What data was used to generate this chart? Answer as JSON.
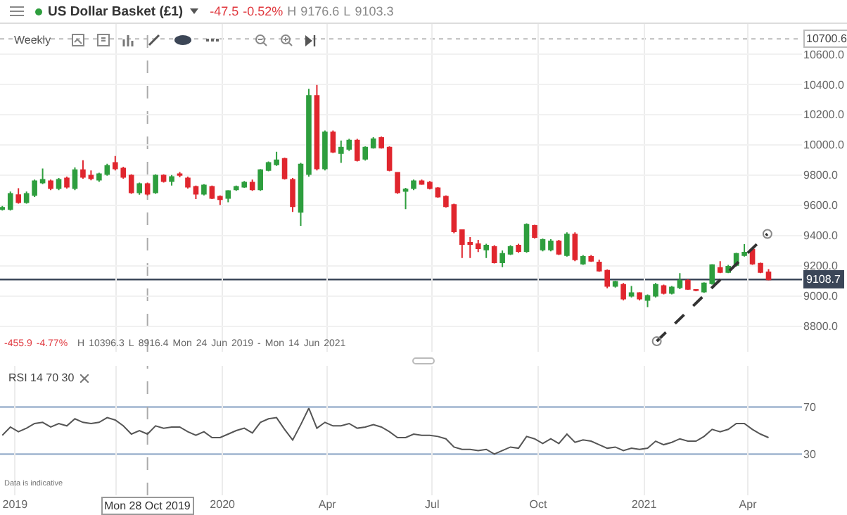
{
  "chart_data": [
    {
      "type": "candlestick",
      "title": "US Dollar Basket (£1)",
      "subtitle": "-47.5 -0.52% H 9176.6 L 9103.3",
      "annotations": [
        "Weekly",
        "-455.9 -4.77% H 10396.3 L 8916.4 Mon 24 Jun 2019 - Mon 14 Jun 2021"
      ],
      "x": [
        "2019-06-24",
        "2019-07-01",
        "2019-07-08",
        "2019-07-15",
        "2019-07-22",
        "2019-07-29",
        "2019-08-05",
        "2019-08-12",
        "2019-08-19",
        "2019-08-26",
        "2019-09-02",
        "2019-09-09",
        "2019-09-16",
        "2019-09-23",
        "2019-09-30",
        "2019-10-07",
        "2019-10-14",
        "2019-10-21",
        "2019-10-28",
        "2019-11-04",
        "2019-11-11",
        "2019-11-18",
        "2019-11-25",
        "2019-12-02",
        "2019-12-09",
        "2019-12-16",
        "2019-12-23",
        "2019-12-30",
        "2020-01-06",
        "2020-01-13",
        "2020-01-20",
        "2020-01-27",
        "2020-02-03",
        "2020-02-10",
        "2020-02-17",
        "2020-02-24",
        "2020-03-02",
        "2020-03-09",
        "2020-03-16",
        "2020-03-23",
        "2020-03-30",
        "2020-04-06",
        "2020-04-13",
        "2020-04-20",
        "2020-04-27",
        "2020-05-04",
        "2020-05-11",
        "2020-05-18",
        "2020-05-25",
        "2020-06-01",
        "2020-06-08",
        "2020-06-15",
        "2020-06-22",
        "2020-06-29",
        "2020-07-06",
        "2020-07-13",
        "2020-07-20",
        "2020-07-27",
        "2020-08-03",
        "2020-08-10",
        "2020-08-17",
        "2020-08-24",
        "2020-08-31",
        "2020-09-07",
        "2020-09-14",
        "2020-09-21",
        "2020-09-28",
        "2020-10-05",
        "2020-10-12",
        "2020-10-19",
        "2020-10-26",
        "2020-11-02",
        "2020-11-09",
        "2020-11-16",
        "2020-11-23",
        "2020-11-30",
        "2020-12-07",
        "2020-12-14",
        "2020-12-21",
        "2020-12-28",
        "2021-01-04",
        "2021-01-11",
        "2021-01-18",
        "2021-01-25",
        "2021-02-01",
        "2021-02-08",
        "2021-02-15",
        "2021-02-22",
        "2021-03-01",
        "2021-03-08",
        "2021-03-15",
        "2021-03-22",
        "2021-03-29",
        "2021-04-05",
        "2021-04-12",
        "2021-04-19"
      ],
      "ohlc": [
        [
          9574,
          9595,
          9565,
          9583
        ],
        [
          9574,
          9690,
          9565,
          9676
        ],
        [
          9667,
          9713,
          9610,
          9620
        ],
        [
          9620,
          9690,
          9610,
          9676
        ],
        [
          9667,
          9770,
          9655,
          9759
        ],
        [
          9750,
          9843,
          9740,
          9769
        ],
        [
          9759,
          9770,
          9700,
          9713
        ],
        [
          9713,
          9780,
          9700,
          9769
        ],
        [
          9778,
          9790,
          9710,
          9722
        ],
        [
          9713,
          9850,
          9700,
          9833
        ],
        [
          9833,
          9898,
          9775,
          9787
        ],
        [
          9796,
          9830,
          9765,
          9778
        ],
        [
          9769,
          9815,
          9755,
          9806
        ],
        [
          9806,
          9875,
          9795,
          9861
        ],
        [
          9880,
          9926,
          9830,
          9843
        ],
        [
          9843,
          9855,
          9775,
          9787
        ],
        [
          9796,
          9805,
          9675,
          9685
        ],
        [
          9685,
          9750,
          9670,
          9741
        ],
        [
          9741,
          9750,
          9665,
          9676
        ],
        [
          9685,
          9805,
          9675,
          9796
        ],
        [
          9796,
          9805,
          9750,
          9759
        ],
        [
          9759,
          9800,
          9730,
          9787
        ],
        [
          9806,
          9820,
          9785,
          9800
        ],
        [
          9778,
          9790,
          9710,
          9722
        ],
        [
          9722,
          9730,
          9640,
          9676
        ],
        [
          9676,
          9740,
          9665,
          9731
        ],
        [
          9722,
          9730,
          9640,
          9648
        ],
        [
          9657,
          9665,
          9602,
          9639
        ],
        [
          9648,
          9700,
          9620,
          9694
        ],
        [
          9704,
          9730,
          9695,
          9722
        ],
        [
          9722,
          9760,
          9715,
          9750
        ],
        [
          9750,
          9770,
          9695,
          9704
        ],
        [
          9704,
          9840,
          9695,
          9833
        ],
        [
          9833,
          9890,
          9825,
          9880
        ],
        [
          9870,
          9954,
          9860,
          9898
        ],
        [
          9907,
          9915,
          9770,
          9778
        ],
        [
          9769,
          9780,
          9556,
          9593
        ],
        [
          9556,
          9880,
          9463,
          9870
        ],
        [
          9806,
          10370,
          9790,
          10324
        ],
        [
          10324,
          10396,
          9830,
          9843
        ],
        [
          9843,
          10095,
          9830,
          10083
        ],
        [
          10083,
          10095,
          9945,
          9954
        ],
        [
          9944,
          10028,
          9880,
          9982
        ],
        [
          9972,
          10040,
          9960,
          10028
        ],
        [
          10028,
          10040,
          9890,
          9898
        ],
        [
          9907,
          9990,
          9895,
          9982
        ],
        [
          9982,
          10050,
          9975,
          10037
        ],
        [
          10046,
          10055,
          9975,
          9982
        ],
        [
          9982,
          9990,
          9825,
          9833
        ],
        [
          9815,
          9820,
          9675,
          9685
        ],
        [
          9694,
          9715,
          9574,
          9704
        ],
        [
          9713,
          9770,
          9700,
          9759
        ],
        [
          9759,
          9770,
          9735,
          9741
        ],
        [
          9750,
          9760,
          9705,
          9713
        ],
        [
          9713,
          9720,
          9650,
          9657
        ],
        [
          9657,
          9665,
          9585,
          9593
        ],
        [
          9602,
          9610,
          9415,
          9426
        ],
        [
          9435,
          9440,
          9250,
          9343
        ],
        [
          9352,
          9389,
          9250,
          9343
        ],
        [
          9343,
          9370,
          9290,
          9315
        ],
        [
          9306,
          9345,
          9250,
          9333
        ],
        [
          9324,
          9335,
          9215,
          9222
        ],
        [
          9222,
          9300,
          9190,
          9278
        ],
        [
          9278,
          9335,
          9270,
          9324
        ],
        [
          9333,
          9345,
          9285,
          9296
        ],
        [
          9296,
          9480,
          9285,
          9472
        ],
        [
          9463,
          9470,
          9380,
          9389
        ],
        [
          9306,
          9380,
          9295,
          9370
        ],
        [
          9306,
          9375,
          9295,
          9361
        ],
        [
          9361,
          9370,
          9270,
          9278
        ],
        [
          9269,
          9420,
          9260,
          9407
        ],
        [
          9407,
          9420,
          9230,
          9241
        ],
        [
          9213,
          9270,
          9205,
          9259
        ],
        [
          9259,
          9270,
          9225,
          9232
        ],
        [
          9222,
          9240,
          9160,
          9167
        ],
        [
          9167,
          9175,
          9050,
          9065
        ],
        [
          9065,
          9100,
          9055,
          9093
        ],
        [
          9074,
          9085,
          8970,
          8981
        ],
        [
          9000,
          9065,
          8990,
          9019
        ],
        [
          9019,
          9025,
          8970,
          8981
        ],
        [
          8972,
          9010,
          8926,
          9000
        ],
        [
          9000,
          9085,
          8990,
          9074
        ],
        [
          9065,
          9075,
          9010,
          9019
        ],
        [
          9019,
          9065,
          9010,
          9056
        ],
        [
          9056,
          9150,
          9045,
          9102
        ],
        [
          9102,
          9110,
          9040,
          9046
        ],
        [
          9040,
          9045,
          9030,
          9037
        ],
        [
          9028,
          9090,
          9020,
          9083
        ],
        [
          9083,
          9210,
          9075,
          9204
        ],
        [
          9185,
          9230,
          9150,
          9157
        ],
        [
          9157,
          9205,
          9150,
          9194
        ],
        [
          9204,
          9285,
          9195,
          9278
        ],
        [
          9269,
          9343,
          9260,
          9287
        ],
        [
          9306,
          9315,
          9205,
          9213
        ],
        [
          9213,
          9220,
          9150,
          9157
        ],
        [
          9156,
          9177,
          9103,
          9109
        ]
      ],
      "series": [
        {
          "type": "line",
          "x": [
            "2021-01-12",
            "2021-04-18"
          ],
          "values": [
            8700,
            9410
          ],
          "color": "#333333",
          "line_style": "dashed",
          "marker": "circle"
        }
      ],
      "xlim": [
        "2019-06-22",
        "2021-05-18"
      ],
      "ylim": [
        8630,
        10800
      ],
      "yticks": [
        {
          "value": 8800,
          "label": "8800.0"
        },
        {
          "value": 9000,
          "label": "9000.0"
        },
        {
          "value": 9200,
          "label": "9200.0"
        },
        {
          "value": 9400,
          "label": "9400.0"
        },
        {
          "value": 9600,
          "label": "9600.0"
        },
        {
          "value": 9800,
          "label": "9800.0"
        },
        {
          "value": 10000,
          "label": "10000.0"
        },
        {
          "value": 10200,
          "label": "10200.0"
        },
        {
          "value": 10400,
          "label": "10400.0"
        },
        {
          "value": 10600,
          "label": "10600.0"
        }
      ],
      "xticks": [
        {
          "value": "2019-10-01",
          "label": null
        },
        {
          "value": "2020-01-01",
          "label": null
        },
        {
          "value": "2020-04-01",
          "label": null
        },
        {
          "value": "2020-07-01",
          "label": null
        },
        {
          "value": "2020-10-01",
          "label": null
        },
        {
          "value": "2021-01-01",
          "label": null
        },
        {
          "value": "2021-04-01",
          "label": null
        }
      ],
      "ref_lines": [
        {
          "axis": "y",
          "value": 9108.7,
          "label": "9108.7",
          "color": "#3b4658",
          "line_style": "solid"
        },
        {
          "axis": "y",
          "value": 10700.6,
          "label": "10700.6",
          "color": "#bbbbbb",
          "line_style": "dotted"
        },
        {
          "axis": "x",
          "value": "2019-10-28",
          "color": "#aaaaaa",
          "line_style": "dashed"
        }
      ],
      "grid": true,
      "tick_labels": "y"
    },
    {
      "type": "line",
      "title": "RSI 14 70 30",
      "annotations": [
        "Data is indicative"
      ],
      "x": [
        "2019-06-24",
        "2019-07-01",
        "2019-07-08",
        "2019-07-15",
        "2019-07-22",
        "2019-07-29",
        "2019-08-05",
        "2019-08-12",
        "2019-08-19",
        "2019-08-26",
        "2019-09-02",
        "2019-09-09",
        "2019-09-16",
        "2019-09-23",
        "2019-09-30",
        "2019-10-07",
        "2019-10-14",
        "2019-10-21",
        "2019-10-28",
        "2019-11-04",
        "2019-11-11",
        "2019-11-18",
        "2019-11-25",
        "2019-12-02",
        "2019-12-09",
        "2019-12-16",
        "2019-12-23",
        "2019-12-30",
        "2020-01-06",
        "2020-01-13",
        "2020-01-20",
        "2020-01-27",
        "2020-02-03",
        "2020-02-10",
        "2020-02-17",
        "2020-02-24",
        "2020-03-02",
        "2020-03-09",
        "2020-03-16",
        "2020-03-23",
        "2020-03-30",
        "2020-04-06",
        "2020-04-13",
        "2020-04-20",
        "2020-04-27",
        "2020-05-04",
        "2020-05-11",
        "2020-05-18",
        "2020-05-25",
        "2020-06-01",
        "2020-06-08",
        "2020-06-15",
        "2020-06-22",
        "2020-06-29",
        "2020-07-06",
        "2020-07-13",
        "2020-07-20",
        "2020-07-27",
        "2020-08-03",
        "2020-08-10",
        "2020-08-17",
        "2020-08-24",
        "2020-08-31",
        "2020-09-07",
        "2020-09-14",
        "2020-09-21",
        "2020-09-28",
        "2020-10-05",
        "2020-10-12",
        "2020-10-19",
        "2020-10-26",
        "2020-11-02",
        "2020-11-09",
        "2020-11-16",
        "2020-11-23",
        "2020-11-30",
        "2020-12-07",
        "2020-12-14",
        "2020-12-21",
        "2020-12-28",
        "2021-01-04",
        "2021-01-11",
        "2021-01-18",
        "2021-01-25",
        "2021-02-01",
        "2021-02-08",
        "2021-02-15",
        "2021-02-22",
        "2021-03-01",
        "2021-03-08",
        "2021-03-15",
        "2021-03-22",
        "2021-03-29",
        "2021-04-05",
        "2021-04-12",
        "2021-04-19"
      ],
      "values": [
        46,
        53,
        49,
        52,
        56,
        57,
        53,
        56,
        54,
        60,
        57,
        56,
        57,
        61,
        59,
        54,
        47,
        50,
        47,
        54,
        52,
        53,
        53,
        49,
        46,
        49,
        44,
        44,
        47,
        50,
        52,
        48,
        57,
        60,
        61,
        51,
        42,
        55,
        69,
        52,
        57,
        54,
        54,
        56,
        52,
        53,
        55,
        53,
        49,
        44,
        44,
        47,
        46,
        46,
        45,
        43,
        36,
        34,
        34,
        33,
        34,
        30,
        33,
        36,
        35,
        45,
        43,
        39,
        43,
        39,
        47,
        40,
        42,
        41,
        38,
        35,
        36,
        33,
        35,
        34,
        35,
        41,
        38,
        40,
        43,
        41,
        41,
        45,
        51,
        49,
        51,
        56,
        56,
        51,
        47,
        44
      ],
      "color": "#555555",
      "xlim": [
        "2019-06-22",
        "2021-05-18"
      ],
      "ylim": [
        -5,
        105
      ],
      "yticks": [
        30,
        70
      ],
      "xticks": [
        {
          "value": "2019-07-05",
          "label": "2019"
        },
        {
          "value": "2019-10-01",
          "label": null
        },
        {
          "value": "2020-01-01",
          "label": "2020"
        },
        {
          "value": "2020-04-01",
          "label": "Apr"
        },
        {
          "value": "2020-07-01",
          "label": "Jul"
        },
        {
          "value": "2020-10-01",
          "label": "Oct"
        },
        {
          "value": "2021-01-01",
          "label": "2021"
        },
        {
          "value": "2021-04-01",
          "label": "Apr"
        }
      ],
      "ref_lines": [
        {
          "axis": "y",
          "value": 70,
          "color": "#9fb4cf",
          "line_style": "solid"
        },
        {
          "axis": "y",
          "value": 30,
          "color": "#9fb4cf",
          "line_style": "solid"
        },
        {
          "axis": "x",
          "value": "2019-10-28",
          "label": "Mon 28 Oct 2019",
          "color": "#aaaaaa",
          "line_style": "dashed"
        }
      ],
      "grid": "x"
    }
  ]
}
